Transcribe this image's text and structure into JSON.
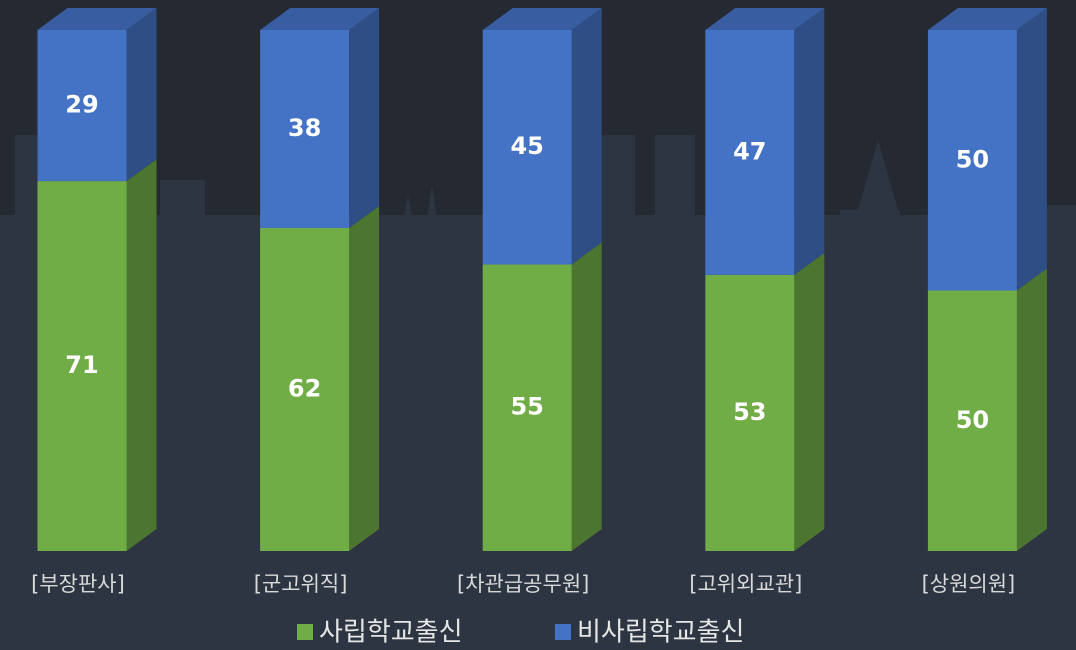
{
  "chart_data": {
    "type": "stacked-bar-3d",
    "categories": [
      "[부장판사]",
      "[군고위직]",
      "[차관급공무원]",
      "[고위외교관]",
      "[상원의원]"
    ],
    "series": [
      {
        "name": "사립학교출신",
        "color": "#70ad47",
        "values": [
          71,
          62,
          55,
          53,
          50
        ]
      },
      {
        "name": "비사립학교출신",
        "color": "#4472c4",
        "values": [
          29,
          38,
          45,
          47,
          50
        ]
      }
    ],
    "ylim": [
      0,
      100
    ]
  }
}
